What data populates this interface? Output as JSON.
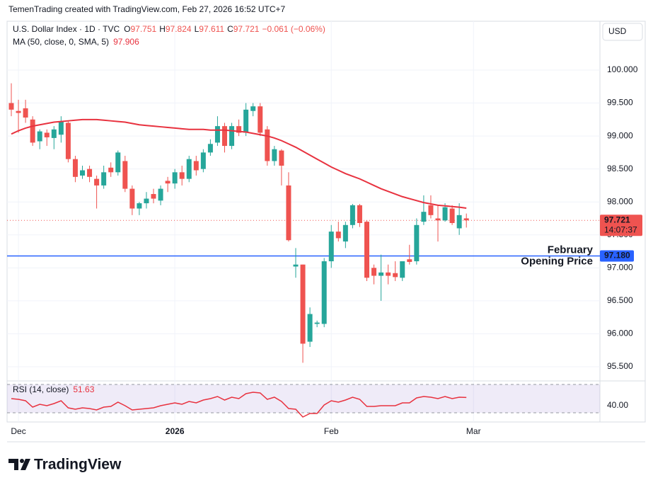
{
  "chart_data": {
    "type": "candlestick",
    "header": "TemenTrading created with TradingView.com, Feb 27, 2026 16:52 UTC+7",
    "symbol": "U.S. Dollar Index · 1D · TVC",
    "ohlc_labels": [
      "O",
      "H",
      "L",
      "C"
    ],
    "change": "−0.061 (−0.06%)",
    "currency": "USD",
    "brand": "TradingView",
    "up_color": "#26a69a",
    "down_color": "#ef5350",
    "grid": true,
    "ylim": [
      95.285,
      100.741
    ],
    "yticks": [
      {
        "value": 95.5,
        "label": "95.500"
      },
      {
        "value": 96,
        "label": "96.000"
      },
      {
        "value": 96.5,
        "label": "96.500"
      },
      {
        "value": 97,
        "label": "97.000"
      },
      {
        "value": 97.5,
        "label": "97.500"
      },
      {
        "value": 98,
        "label": "98.000"
      },
      {
        "value": 98.5,
        "label": "98.500"
      },
      {
        "value": 99,
        "label": "99.000"
      },
      {
        "value": 99.5,
        "label": "99.500"
      },
      {
        "value": 100,
        "label": "100.000"
      }
    ],
    "xticks": [
      {
        "value": 1,
        "label": "Dec"
      },
      {
        "value": 23,
        "label": "2026"
      },
      {
        "value": 45,
        "label": "Feb"
      },
      {
        "value": 65,
        "label": "Mar"
      }
    ],
    "candles": [
      {
        "o": 99.5,
        "h": 99.8,
        "l": 99.3,
        "c": 99.4
      },
      {
        "o": 99.38,
        "h": 99.55,
        "l": 99.05,
        "c": 99.35
      },
      {
        "o": 99.42,
        "h": 99.55,
        "l": 99.2,
        "c": 99.28
      },
      {
        "o": 99.25,
        "h": 99.3,
        "l": 98.85,
        "c": 98.9
      },
      {
        "o": 98.92,
        "h": 99.1,
        "l": 98.8,
        "c": 99.07
      },
      {
        "o": 99.05,
        "h": 99.1,
        "l": 98.85,
        "c": 98.98
      },
      {
        "o": 98.97,
        "h": 99.15,
        "l": 98.8,
        "c": 99.1
      },
      {
        "o": 99.02,
        "h": 99.3,
        "l": 98.9,
        "c": 99.22
      },
      {
        "o": 99.2,
        "h": 99.22,
        "l": 98.6,
        "c": 98.65
      },
      {
        "o": 98.65,
        "h": 98.7,
        "l": 98.3,
        "c": 98.38
      },
      {
        "o": 98.4,
        "h": 98.55,
        "l": 98.35,
        "c": 98.48
      },
      {
        "o": 98.5,
        "h": 98.55,
        "l": 98.3,
        "c": 98.38
      },
      {
        "o": 98.35,
        "h": 98.4,
        "l": 97.9,
        "c": 98.25
      },
      {
        "o": 98.25,
        "h": 98.55,
        "l": 98.2,
        "c": 98.45
      },
      {
        "o": 98.52,
        "h": 98.6,
        "l": 98.38,
        "c": 98.45
      },
      {
        "o": 98.45,
        "h": 98.78,
        "l": 98.4,
        "c": 98.75
      },
      {
        "o": 98.62,
        "h": 98.7,
        "l": 98.15,
        "c": 98.2
      },
      {
        "o": 98.2,
        "h": 98.25,
        "l": 97.8,
        "c": 97.9
      },
      {
        "o": 97.9,
        "h": 98.0,
        "l": 97.8,
        "c": 97.98
      },
      {
        "o": 97.98,
        "h": 98.15,
        "l": 97.9,
        "c": 98.05
      },
      {
        "o": 98.12,
        "h": 98.2,
        "l": 97.98,
        "c": 98.05
      },
      {
        "o": 98.02,
        "h": 98.25,
        "l": 97.95,
        "c": 98.2
      },
      {
        "o": 98.32,
        "h": 98.38,
        "l": 98.15,
        "c": 98.28
      },
      {
        "o": 98.28,
        "h": 98.5,
        "l": 98.2,
        "c": 98.45
      },
      {
        "o": 98.45,
        "h": 98.55,
        "l": 98.25,
        "c": 98.35
      },
      {
        "o": 98.35,
        "h": 98.7,
        "l": 98.3,
        "c": 98.65
      },
      {
        "o": 98.62,
        "h": 98.7,
        "l": 98.4,
        "c": 98.48
      },
      {
        "o": 98.5,
        "h": 98.8,
        "l": 98.45,
        "c": 98.75
      },
      {
        "o": 98.75,
        "h": 98.95,
        "l": 98.7,
        "c": 98.88
      },
      {
        "o": 98.9,
        "h": 99.3,
        "l": 98.85,
        "c": 99.15
      },
      {
        "o": 99.15,
        "h": 99.2,
        "l": 98.75,
        "c": 98.85
      },
      {
        "o": 98.85,
        "h": 99.2,
        "l": 98.8,
        "c": 99.15
      },
      {
        "o": 99.15,
        "h": 99.25,
        "l": 99.0,
        "c": 99.05
      },
      {
        "o": 99.05,
        "h": 99.5,
        "l": 99.0,
        "c": 99.4
      },
      {
        "o": 99.38,
        "h": 99.5,
        "l": 99.3,
        "c": 99.45
      },
      {
        "o": 99.45,
        "h": 99.5,
        "l": 99.0,
        "c": 99.05
      },
      {
        "o": 99.1,
        "h": 99.15,
        "l": 98.55,
        "c": 98.62
      },
      {
        "o": 98.62,
        "h": 98.85,
        "l": 98.55,
        "c": 98.8
      },
      {
        "o": 98.78,
        "h": 98.8,
        "l": 98.25,
        "c": 98.55
      },
      {
        "o": 98.25,
        "h": 98.45,
        "l": 97.4,
        "c": 97.42
      },
      {
        "o": 97.02,
        "h": 97.3,
        "l": 96.85,
        "c": 97.05
      },
      {
        "o": 97.05,
        "h": 97.05,
        "l": 95.56,
        "c": 95.85
      },
      {
        "o": 95.88,
        "h": 96.4,
        "l": 95.8,
        "c": 96.3
      },
      {
        "o": 96.15,
        "h": 96.2,
        "l": 96.1,
        "c": 96.17
      },
      {
        "o": 96.15,
        "h": 97.15,
        "l": 96.1,
        "c": 97.1
      },
      {
        "o": 97.1,
        "h": 97.65,
        "l": 97.0,
        "c": 97.55
      },
      {
        "o": 97.55,
        "h": 97.7,
        "l": 97.4,
        "c": 97.45
      },
      {
        "o": 97.4,
        "h": 97.7,
        "l": 97.3,
        "c": 97.65
      },
      {
        "o": 97.65,
        "h": 97.97,
        "l": 97.6,
        "c": 97.95
      },
      {
        "o": 97.95,
        "h": 97.97,
        "l": 97.62,
        "c": 97.68
      },
      {
        "o": 97.7,
        "h": 97.72,
        "l": 96.8,
        "c": 96.85
      },
      {
        "o": 97.0,
        "h": 97.05,
        "l": 96.75,
        "c": 96.88
      },
      {
        "o": 96.88,
        "h": 97.2,
        "l": 96.5,
        "c": 96.93
      },
      {
        "o": 96.93,
        "h": 97.05,
        "l": 96.75,
        "c": 96.88
      },
      {
        "o": 96.92,
        "h": 97.1,
        "l": 96.8,
        "c": 96.86
      },
      {
        "o": 96.85,
        "h": 97.1,
        "l": 96.8,
        "c": 97.1
      },
      {
        "o": 97.13,
        "h": 97.35,
        "l": 97.05,
        "c": 97.09
      },
      {
        "o": 97.1,
        "h": 97.75,
        "l": 97.05,
        "c": 97.65
      },
      {
        "o": 97.7,
        "h": 98.1,
        "l": 97.65,
        "c": 97.85
      },
      {
        "o": 97.95,
        "h": 98.1,
        "l": 97.75,
        "c": 97.8
      },
      {
        "o": 97.75,
        "h": 97.95,
        "l": 97.4,
        "c": 97.72
      },
      {
        "o": 97.72,
        "h": 97.98,
        "l": 97.7,
        "c": 97.92
      },
      {
        "o": 97.9,
        "h": 97.95,
        "l": 97.65,
        "c": 97.68
      },
      {
        "o": 97.6,
        "h": 97.98,
        "l": 97.5,
        "c": 97.8
      },
      {
        "o": 97.751,
        "h": 97.824,
        "l": 97.611,
        "c": 97.721
      }
    ],
    "countdown": "14:07:37",
    "ma": {
      "name": "MA (50, close, 0, SMA, 5)",
      "color": "#e8323f",
      "values": [
        99.03,
        99.08,
        99.12,
        99.15,
        99.17,
        99.19,
        99.21,
        99.22,
        99.23,
        99.24,
        99.25,
        99.25,
        99.25,
        99.24,
        99.23,
        99.22,
        99.21,
        99.19,
        99.17,
        99.16,
        99.15,
        99.14,
        99.13,
        99.12,
        99.11,
        99.1,
        99.1,
        99.1,
        99.09,
        99.09,
        99.09,
        99.08,
        99.07,
        99.06,
        99.04,
        99.02,
        99.0,
        98.97,
        98.93,
        98.88,
        98.83,
        98.77,
        98.71,
        98.65,
        98.59,
        98.53,
        98.48,
        98.43,
        98.39,
        98.35,
        98.3,
        98.25,
        98.2,
        98.16,
        98.12,
        98.08,
        98.05,
        98.02,
        97.99,
        97.97,
        97.95,
        97.94,
        97.93,
        97.92,
        97.906
      ]
    },
    "hline": {
      "value": 97.18,
      "label": "97.180",
      "color": "#2962ff",
      "annotation": [
        "February",
        "Opening Price"
      ]
    },
    "rsi": {
      "name": "RSI (14, close)",
      "color": "#e8323f",
      "ylim": [
        17,
        75
      ],
      "band": [
        30,
        70
      ],
      "yticks": [
        {
          "value": 40,
          "label": "40.00"
        }
      ],
      "values": [
        50,
        49,
        47,
        38,
        42,
        40,
        43,
        47,
        37,
        35,
        37,
        36,
        34,
        38,
        39,
        45,
        40,
        34,
        35,
        36,
        37,
        40,
        42,
        44,
        42,
        46,
        44,
        48,
        50,
        53,
        48,
        52,
        50,
        57,
        59,
        58,
        49,
        52,
        46,
        36,
        35,
        24,
        29,
        29,
        41,
        47,
        45,
        48,
        52,
        49,
        39,
        39,
        40,
        40,
        40,
        44,
        44,
        51,
        53,
        52,
        50,
        53,
        50,
        52,
        51.63
      ]
    }
  }
}
